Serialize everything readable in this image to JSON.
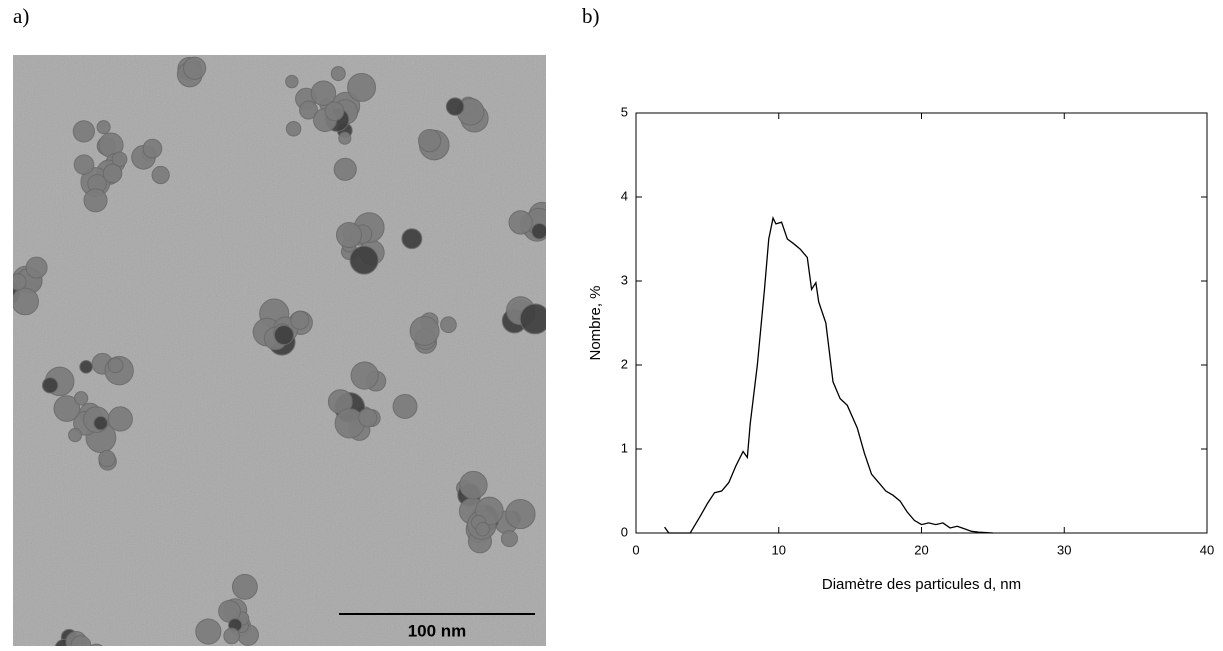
{
  "panel_a": {
    "label": "a)",
    "scale_bar": "100 nm"
  },
  "panel_b": {
    "label": "b)"
  },
  "chart_data": {
    "type": "line",
    "x_label": "Diamètre des particules d, nm",
    "y_label": "Nombre, %",
    "series": [
      {
        "color": "#000000",
        "x": [
          2.0,
          2.3,
          3.8,
          4.5,
          5.0,
          5.5,
          6.0,
          6.5,
          7.0,
          7.5,
          7.8,
          8.0,
          8.5,
          9.0,
          9.3,
          9.6,
          9.8,
          10.2,
          10.6,
          11.0,
          11.5,
          12.0,
          12.3,
          12.6,
          12.8,
          13.3,
          13.8,
          14.3,
          14.8,
          15.5,
          16.0,
          16.5,
          17.0,
          17.5,
          18.0,
          18.5,
          19.0,
          19.5,
          20.0,
          20.5,
          21.0,
          21.5,
          22.0,
          22.5,
          23.0,
          23.5,
          24.0,
          25.0
        ],
        "values": [
          0.07,
          0,
          0,
          0.2,
          0.35,
          0.48,
          0.5,
          0.6,
          0.8,
          0.97,
          0.9,
          1.3,
          2.0,
          2.9,
          3.5,
          3.75,
          3.68,
          3.7,
          3.5,
          3.45,
          3.38,
          3.28,
          2.9,
          2.98,
          2.75,
          2.5,
          1.8,
          1.6,
          1.52,
          1.25,
          0.95,
          0.7,
          0.6,
          0.5,
          0.45,
          0.38,
          0.25,
          0.15,
          0.1,
          0.12,
          0.1,
          0.12,
          0.06,
          0.08,
          0.05,
          0.02,
          0.01,
          0
        ]
      }
    ],
    "xlim": [
      0,
      40
    ],
    "xticks": [
      0,
      10,
      20,
      30,
      40
    ],
    "ylim": [
      0,
      5
    ],
    "yticks": [
      0,
      1,
      2,
      3,
      4,
      5
    ]
  }
}
